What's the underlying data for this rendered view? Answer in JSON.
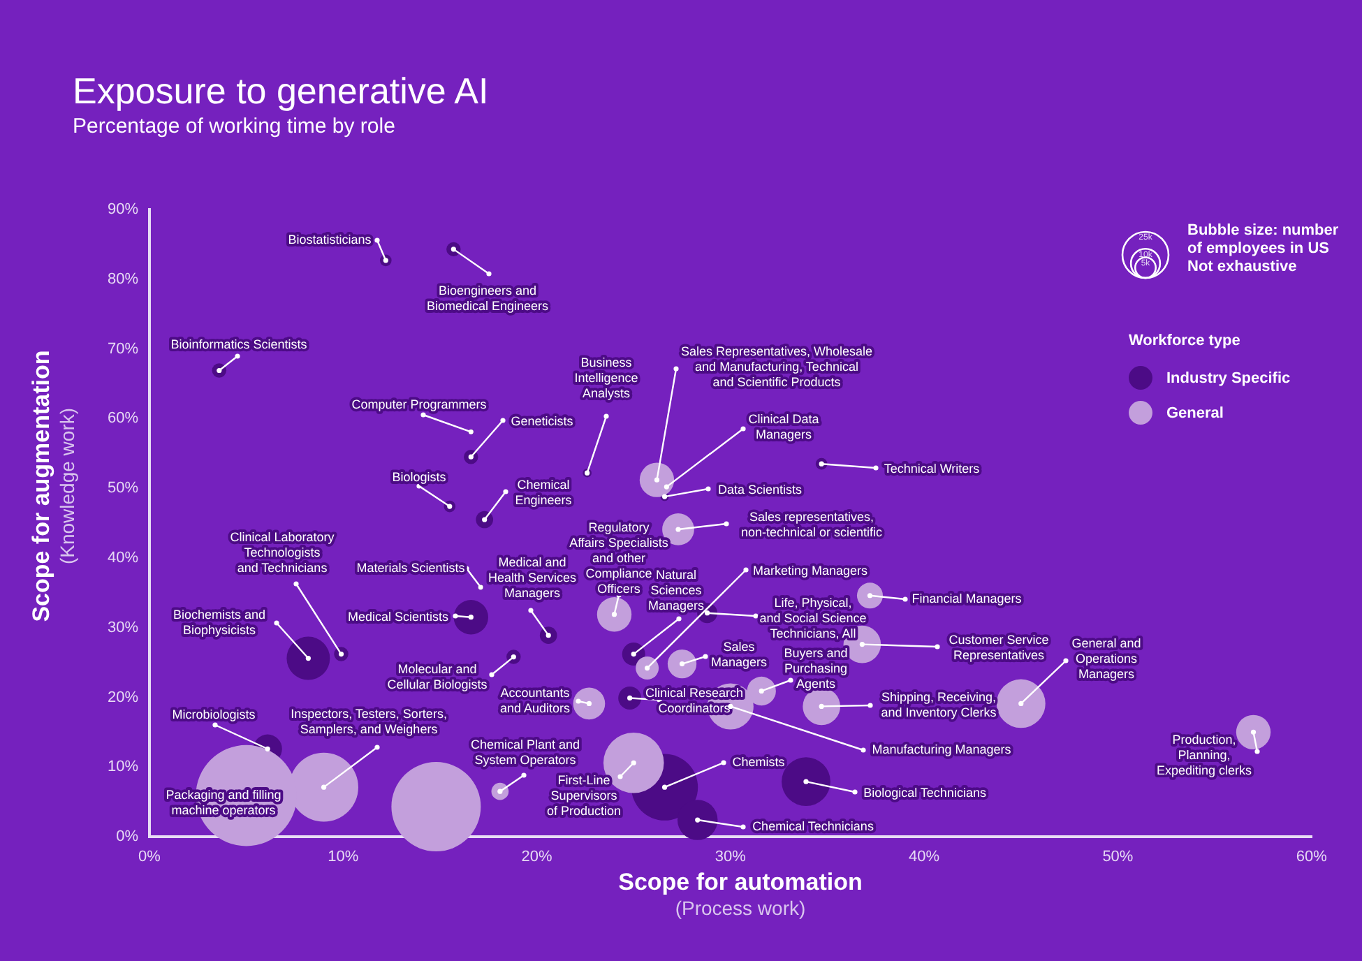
{
  "chart_data": {
    "type": "bubble",
    "title": "Exposure to generative AI",
    "subtitle": "Percentage of working time by role",
    "xlabel": "Scope for automation\n(Process work)",
    "ylabel": "Scope for augmentation\n(Knowledge work)",
    "legend_title": "Workforce type",
    "legend": "right",
    "xlim": [
      0,
      60
    ],
    "xticks": [
      {
        "value": 0,
        "label": "0%"
      },
      {
        "value": 10,
        "label": "10%"
      },
      {
        "value": 20,
        "label": "20%"
      },
      {
        "value": 30,
        "label": "30%"
      },
      {
        "value": 40,
        "label": "40%"
      },
      {
        "value": 50,
        "label": "50%"
      },
      {
        "value": 60,
        "label": "60%"
      }
    ],
    "ylim": [
      0,
      90
    ],
    "yticks": [
      {
        "value": 0,
        "label": "0%"
      },
      {
        "value": 10,
        "label": "10%"
      },
      {
        "value": 20,
        "label": "20%"
      },
      {
        "value": 30,
        "label": "30%"
      },
      {
        "value": 40,
        "label": "40%"
      },
      {
        "value": 50,
        "label": "50%"
      },
      {
        "value": 60,
        "label": "60%"
      },
      {
        "value": 70,
        "label": "70%"
      },
      {
        "value": 80,
        "label": "80%"
      },
      {
        "value": 90,
        "label": "90%"
      }
    ],
    "grid": false,
    "size_legend": [
      {
        "value": 25000,
        "label": "25k"
      },
      {
        "value": 10000,
        "label": "10k"
      },
      {
        "value": 5000,
        "label": "5k"
      }
    ],
    "series": [
      {
        "name": "Industry Specific",
        "color": "#4c0b86",
        "x": [
          12.2,
          15.7,
          3.6,
          16.6,
          16.6,
          15.5,
          17.3,
          22.6,
          26.6,
          34.7,
          25.0,
          28.8,
          24.8,
          26.6,
          28.3,
          33.9,
          6.1,
          8.2,
          9.9,
          16.6,
          17.1,
          20.6,
          18.8
        ],
        "values": [
          82.7,
          84.3,
          66.9,
          58.1,
          54.5,
          47.4,
          45.5,
          52.2,
          48.8,
          53.5,
          26.2,
          32.1,
          19.9,
          7.1,
          2.4,
          7.9,
          12.6,
          25.6,
          26.2,
          31.5,
          35.8,
          28.9,
          25.8
        ],
        "sizes": [
          1600,
          2400,
          2400,
          400,
          2400,
          1600,
          3500,
          900,
          900,
          1600,
          6250,
          4800,
          6250,
          52000,
          19000,
          28000,
          9800,
          22000,
          2400,
          14000,
          400,
          3500,
          2400
        ]
      },
      {
        "name": "General",
        "color": "#c39fdc",
        "x": [
          26.2,
          26.7,
          27.3,
          24.0,
          25.7,
          27.5,
          37.2,
          36.8,
          31.6,
          30.0,
          34.7,
          45.0,
          57.0,
          22.7,
          25.0,
          18.1,
          9.0,
          5.0,
          14.8
        ],
        "values": [
          51.2,
          50.2,
          44.1,
          31.9,
          24.2,
          24.8,
          34.6,
          27.6,
          20.9,
          18.7,
          18.7,
          19.1,
          15.0,
          19.1,
          10.6,
          6.5,
          7.1,
          5.9,
          4.3
        ],
        "sizes": [
          14000,
          400,
          12000,
          14000,
          6250,
          9800,
          7900,
          16500,
          9800,
          25000,
          16500,
          28000,
          14000,
          12000,
          43000,
          3500,
          56000,
          120000,
          94000
        ]
      }
    ],
    "annotations": [
      {
        "text": "Biostatisticians",
        "x": 12.2,
        "y": 82.7
      },
      {
        "text": "Bioengineers and\nBiomedical Engineers",
        "x": 15.7,
        "y": 84.3
      },
      {
        "text": "Bioinformatics Scientists",
        "x": 3.6,
        "y": 66.9
      },
      {
        "text": "Computer Programmers",
        "x": 16.6,
        "y": 58.1
      },
      {
        "text": "Geneticists",
        "x": 16.6,
        "y": 54.5
      },
      {
        "text": "Biologists",
        "x": 15.5,
        "y": 47.4
      },
      {
        "text": "Chemical\nEngineers",
        "x": 17.3,
        "y": 45.5
      },
      {
        "text": "Business\nIntelligence\nAnalysts",
        "x": 22.6,
        "y": 52.2
      },
      {
        "text": "Sales Representatives, Wholesale\nand Manufacturing, Technical\nand Scientific Products",
        "x": 26.2,
        "y": 51.2
      },
      {
        "text": "Clinical Data\nManagers",
        "x": 26.7,
        "y": 50.2
      },
      {
        "text": "Data Scientists",
        "x": 26.6,
        "y": 48.8
      },
      {
        "text": "Technical Writers",
        "x": 34.7,
        "y": 53.5
      },
      {
        "text": "Sales representatives,\nnon-technical or scientific",
        "x": 27.3,
        "y": 44.1
      },
      {
        "text": "Regulatory\nAffairs Specialists\nand other\nCompliance\nOfficers",
        "x": 24.0,
        "y": 31.9
      },
      {
        "text": "Natural\nSciences\nManagers",
        "x": 25.0,
        "y": 26.2
      },
      {
        "text": "Marketing Managers",
        "x": 25.7,
        "y": 24.2
      },
      {
        "text": "Life, Physical,\nand Social Science\nTechnicians, All",
        "x": 28.8,
        "y": 32.1
      },
      {
        "text": "Sales\nManagers",
        "x": 27.5,
        "y": 24.8
      },
      {
        "text": "Financial Managers",
        "x": 37.2,
        "y": 34.6
      },
      {
        "text": "Customer Service\nRepresentatives",
        "x": 36.8,
        "y": 27.6
      },
      {
        "text": "Buyers and\nPurchasing\nAgents",
        "x": 31.6,
        "y": 20.9
      },
      {
        "text": "Clinical Research\nCoordinators",
        "x": 24.8,
        "y": 19.9
      },
      {
        "text": "Manufacturing Managers",
        "x": 30.0,
        "y": 18.7
      },
      {
        "text": "Shipping, Receiving,\nand Inventory Clerks",
        "x": 34.7,
        "y": 18.7
      },
      {
        "text": "General and\nOperations\nManagers",
        "x": 45.0,
        "y": 19.1
      },
      {
        "text": "Production,\nPlanning,\nExpediting clerks",
        "x": 57.0,
        "y": 15.0
      },
      {
        "text": "Accountants\nand Auditors",
        "x": 22.7,
        "y": 19.1
      },
      {
        "text": "First-Line\nSupervisors\nof Production",
        "x": 25.0,
        "y": 10.6
      },
      {
        "text": "Chemists",
        "x": 26.6,
        "y": 7.1
      },
      {
        "text": "Biological Technicians",
        "x": 33.9,
        "y": 7.9
      },
      {
        "text": "Chemical Technicians",
        "x": 28.3,
        "y": 2.4
      },
      {
        "text": "Chemical Plant and\nSystem Operators",
        "x": 18.1,
        "y": 6.5
      },
      {
        "text": "Inspectors, Testers, Sorters,\nSamplers, and Weighers",
        "x": 9.0,
        "y": 7.1
      },
      {
        "text": "Packaging and filling\nmachine operators",
        "x": 5.0,
        "y": 5.9
      },
      {
        "text": "Microbiologists",
        "x": 6.1,
        "y": 12.6
      },
      {
        "text": "Biochemists and\nBiophysicists",
        "x": 8.2,
        "y": 25.6
      },
      {
        "text": "Clinical Laboratory\nTechnologists\nand Technicians",
        "x": 9.9,
        "y": 26.2
      },
      {
        "text": "Medical Scientists",
        "x": 16.6,
        "y": 31.5
      },
      {
        "text": "Materials Scientists",
        "x": 17.1,
        "y": 35.8
      },
      {
        "text": "Medical and\nHealth Services\nManagers",
        "x": 20.6,
        "y": 28.9
      },
      {
        "text": "Molecular and\nCellular Biologists",
        "x": 18.8,
        "y": 25.8
      },
      "Bubble size: number\nof employees in US\nNot exhaustive"
    ]
  }
}
